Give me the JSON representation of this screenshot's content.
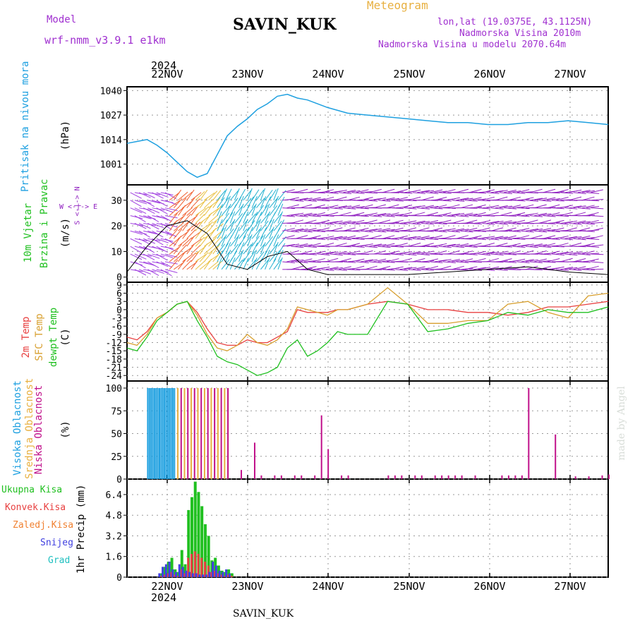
{
  "header": {
    "model_label": "Model",
    "model_name": "wrf-nmm_v3.9.1 e1km",
    "station": "SAVIN_KUK",
    "meteogram": "Meteogram",
    "lonlat": "lon,lat (19.0375E, 43.1125N)",
    "altitude": "Nadmorska Visina 2010m",
    "model_altitude": "Nadmorska Visina u modelu 2070.64m",
    "year_top": "2024",
    "year_bottom": "2024",
    "footer_station": "SAVIN_KUK",
    "watermark": "made by Angel"
  },
  "colors": {
    "pressure": "#1ea0e0",
    "temp": "#e84040",
    "sfc_temp": "#d8a030",
    "dewpt": "#20c020",
    "wind_purple": "#9020c0",
    "high_cloud": "#1ea0e0",
    "mid_cloud": "#e8b040",
    "low_cloud": "#c0108a",
    "total_precip": "#20c020",
    "conv_precip": "#e84040",
    "frz_precip": "#f08030",
    "snow": "#4040e0",
    "graupel": "#20c0c0"
  },
  "x_axis": {
    "date_labels": [
      "22NOV",
      "23NOV",
      "24NOV",
      "25NOV",
      "26NOV",
      "27NOV"
    ]
  },
  "panels": {
    "pressure": {
      "ylabel_left": "Pritisak na nivou mora",
      "unit": "(hPa)",
      "ticks": [
        "1040",
        "1027",
        "1014",
        "1001"
      ]
    },
    "wind": {
      "ylabel_left_1": "10m Vjetar",
      "ylabel_left_2": "Brzina i Pravac",
      "unit": "(m/s)",
      "compass": "W <-|-> E",
      "compass2": "S <-|-> N",
      "ticks": [
        "30",
        "20",
        "10",
        "0"
      ]
    },
    "temperature": {
      "ylabel_1": "2m Temp",
      "ylabel_2": "SFC Temp",
      "ylabel_3": "dewpt Temp",
      "unit": "(C)",
      "ticks": [
        "9",
        "6",
        "3",
        "0",
        "-3",
        "-6",
        "-9",
        "-12",
        "-15",
        "-18",
        "-21",
        "-24"
      ]
    },
    "cloud": {
      "ylabel_1": "Visoka Oblacnost",
      "ylabel_2": "Srednja Oblacnost",
      "ylabel_3": "Niska Oblacnost",
      "unit": "(%)",
      "ticks": [
        "100",
        "75",
        "50",
        "25",
        "0"
      ]
    },
    "precip": {
      "legend": [
        "Ukupna Kisa",
        "Konvek.Kisa",
        "Zaledj.Kisa",
        "Snijeg",
        "Grad"
      ],
      "unit": "1hr Precip (mm)",
      "ticks": [
        "6.4",
        "4.8",
        "3.2",
        "1.6",
        "0"
      ]
    }
  },
  "chart_data": [
    {
      "type": "line",
      "title": "Pritisak na nivou mora",
      "ylabel": "(hPa)",
      "ylim": [
        990,
        1042
      ],
      "x_hours": [
        0,
        3,
        6,
        9,
        12,
        15,
        18,
        21,
        24,
        27,
        30,
        33,
        36,
        39,
        42,
        45,
        48,
        51,
        54,
        57,
        60,
        66,
        72,
        78,
        84,
        90,
        96,
        102,
        108,
        114,
        120,
        126,
        132,
        138,
        144
      ],
      "values": [
        1012,
        1013,
        1014,
        1011,
        1007,
        1002,
        997,
        994,
        996,
        1006,
        1016,
        1021,
        1025,
        1030,
        1033,
        1037,
        1038,
        1036,
        1035,
        1033,
        1031,
        1028,
        1027,
        1026,
        1025,
        1024,
        1023,
        1023,
        1022,
        1022,
        1023,
        1023,
        1024,
        1023,
        1022
      ]
    },
    {
      "type": "line",
      "title": "10m Vjetar Brzina i Pravac",
      "ylabel": "(m/s)",
      "ylim": [
        -2,
        36
      ],
      "x_hours": [
        0,
        6,
        12,
        18,
        24,
        30,
        36,
        42,
        48,
        54,
        60,
        72,
        84,
        96,
        108,
        120,
        126,
        132,
        144
      ],
      "series": [
        {
          "name": "speed",
          "values": [
            2,
            12,
            20,
            22,
            17,
            5,
            3,
            8,
            10,
            3,
            1,
            1,
            1,
            2,
            3,
            4,
            3,
            2,
            1
          ]
        }
      ]
    },
    {
      "type": "line",
      "title": "Temperature",
      "ylabel": "(C)",
      "ylim": [
        -26,
        10
      ],
      "x_hours": [
        0,
        3,
        6,
        9,
        12,
        15,
        18,
        21,
        24,
        27,
        30,
        33,
        36,
        39,
        42,
        45,
        48,
        51,
        54,
        57,
        60,
        63,
        66,
        72,
        78,
        84,
        90,
        96,
        102,
        108,
        114,
        120,
        126,
        132,
        138,
        144
      ],
      "series": [
        {
          "name": "2m Temp",
          "values": [
            -10,
            -11,
            -8,
            -3,
            -1,
            2,
            3,
            -1,
            -7,
            -12,
            -13,
            -13,
            -11,
            -12,
            -12,
            -10,
            -8,
            0,
            -1,
            -1,
            -1,
            0,
            0,
            2,
            3,
            2,
            0,
            0,
            -1,
            -1,
            -2,
            -1,
            1,
            1,
            2,
            3
          ]
        },
        {
          "name": "SFC Temp",
          "values": [
            -12,
            -13,
            -9,
            -3,
            -1,
            2,
            3,
            -2,
            -9,
            -14,
            -15,
            -13,
            -9,
            -12,
            -13,
            -11,
            -7,
            1,
            0,
            -1,
            -2,
            0,
            0,
            2,
            8,
            2,
            -5,
            -5,
            -4,
            -4,
            2,
            3,
            -1,
            -3,
            5,
            6
          ]
        },
        {
          "name": "dewpt Temp",
          "values": [
            -14,
            -15,
            -10,
            -4,
            -1,
            2,
            3,
            -4,
            -10,
            -17,
            -19,
            -20,
            -22,
            -24,
            -23,
            -21,
            -14,
            -11,
            -17,
            -15,
            -12,
            -8,
            -9,
            -9,
            3,
            2,
            -8,
            -7,
            -5,
            -4,
            -1,
            -2,
            0,
            -1,
            -1,
            1
          ]
        }
      ]
    },
    {
      "type": "bar",
      "title": "Oblacnost",
      "ylabel": "(%)",
      "ylim": [
        0,
        100
      ],
      "series": [
        {
          "name": "Visoka Oblacnost",
          "x_hours": [
            6,
            6.5,
            7,
            7.5,
            8,
            8.5,
            9,
            9.5,
            10,
            10.5,
            11,
            11.5,
            12,
            12.5,
            13,
            13.5,
            14
          ],
          "values": [
            100,
            100,
            100,
            100,
            100,
            100,
            100,
            100,
            100,
            100,
            100,
            100,
            100,
            100,
            100,
            100,
            100
          ]
        },
        {
          "name": "Srednja Oblacnost",
          "x_hours": [
            15,
            17,
            19,
            21,
            23,
            25,
            27,
            29,
            30
          ],
          "values": [
            100,
            100,
            100,
            100,
            100,
            100,
            100,
            100,
            100
          ]
        },
        {
          "name": "Niska Oblacnost",
          "x_hours": [
            16,
            18,
            20,
            22,
            24,
            26,
            28,
            30,
            34,
            38,
            40,
            44,
            46,
            50,
            52,
            56,
            58,
            60,
            64,
            66,
            78,
            80,
            82,
            86,
            88,
            92,
            94,
            96,
            98,
            100,
            104,
            112,
            114,
            116,
            118,
            120,
            128,
            134,
            138,
            142,
            144
          ],
          "values": [
            100,
            100,
            100,
            100,
            100,
            100,
            100,
            100,
            10,
            40,
            4,
            4,
            4,
            4,
            4,
            4,
            70,
            33,
            4,
            4,
            4,
            4,
            4,
            4,
            4,
            4,
            4,
            4,
            4,
            4,
            4,
            4,
            4,
            4,
            4,
            100,
            49,
            3,
            3,
            4,
            5
          ]
        }
      ]
    },
    {
      "type": "bar",
      "title": "1hr Precip",
      "ylabel": "1hr Precip (mm)",
      "ylim": [
        0,
        7.6
      ],
      "x_hours": [
        10,
        11,
        12,
        13,
        14,
        15,
        16,
        17,
        18,
        19,
        20,
        21,
        22,
        23,
        24,
        25,
        26,
        27,
        28,
        29,
        30,
        31
      ],
      "series": [
        {
          "name": "Ukupna Kisa",
          "values": [
            0.3,
            0.8,
            1.2,
            1.5,
            0.6,
            0.4,
            2.1,
            1.0,
            5.2,
            6.2,
            7.4,
            6.6,
            5.5,
            4.1,
            3.2,
            1.3,
            1.5,
            0.9,
            0.5,
            0.4,
            0.6,
            0.3
          ]
        },
        {
          "name": "Konvek.Kisa",
          "values": [
            0.1,
            0.2,
            0.3,
            0.4,
            0.2,
            0.1,
            0.6,
            0.3,
            1.5,
            1.8,
            2.0,
            1.8,
            1.5,
            1.2,
            0.9,
            0.4,
            0.5,
            0.3,
            0.2,
            0.1,
            0.2,
            0.1
          ]
        },
        {
          "name": "Snijeg",
          "values": [
            0.3,
            0.8,
            1.0,
            1.2,
            0.6,
            0.4,
            1.0,
            0.8,
            0.5,
            0.4,
            0.3,
            0.3,
            0.2,
            0.2,
            0.2,
            0.4,
            1.2,
            0.9,
            0.5,
            0.4,
            0.6,
            0.3
          ]
        }
      ]
    }
  ]
}
